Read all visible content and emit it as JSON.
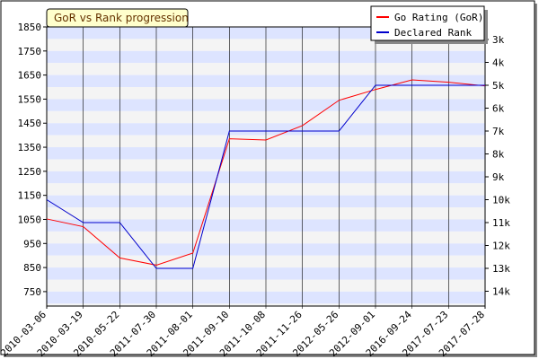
{
  "chart_data": {
    "type": "line",
    "title": "GoR vs Rank progression",
    "categories": [
      "2010-03-06",
      "2010-03-19",
      "2010-05-22",
      "2011-07-30",
      "2011-08-01",
      "2011-09-10",
      "2011-10-08",
      "2011-11-26",
      "2012-05-26",
      "2012-09-01",
      "2016-09-24",
      "2017-07-23",
      "2017-07-28"
    ],
    "left_axis": {
      "ticks": [
        750,
        850,
        950,
        1050,
        1150,
        1250,
        1350,
        1450,
        1550,
        1650,
        1750,
        1850
      ],
      "ylim": [
        690,
        1850
      ]
    },
    "right_axis": {
      "ticks": [
        "3k",
        "4k",
        "5k",
        "6k",
        "7k",
        "8k",
        "9k",
        "10k",
        "11k",
        "12k",
        "13k",
        "14k"
      ]
    },
    "series": [
      {
        "name": "Go Rating (GoR)",
        "color": "#ff0000",
        "axis": "left",
        "values": [
          1052,
          1020,
          890,
          860,
          910,
          1385,
          1380,
          1440,
          1545,
          1590,
          1630,
          1620,
          1605
        ]
      },
      {
        "name": "Declared Rank",
        "color": "#0000cc",
        "axis": "right",
        "values": [
          "10k",
          "11k",
          "11k",
          "13k",
          "13k",
          "7k",
          "7k",
          "7k",
          "7k",
          "5k",
          "5k",
          "5k",
          "5k"
        ]
      }
    ],
    "legend_position": "top-right",
    "grid": "horizontal bands",
    "band_colors": [
      "#dde4ff",
      "#f4f4f4"
    ]
  }
}
